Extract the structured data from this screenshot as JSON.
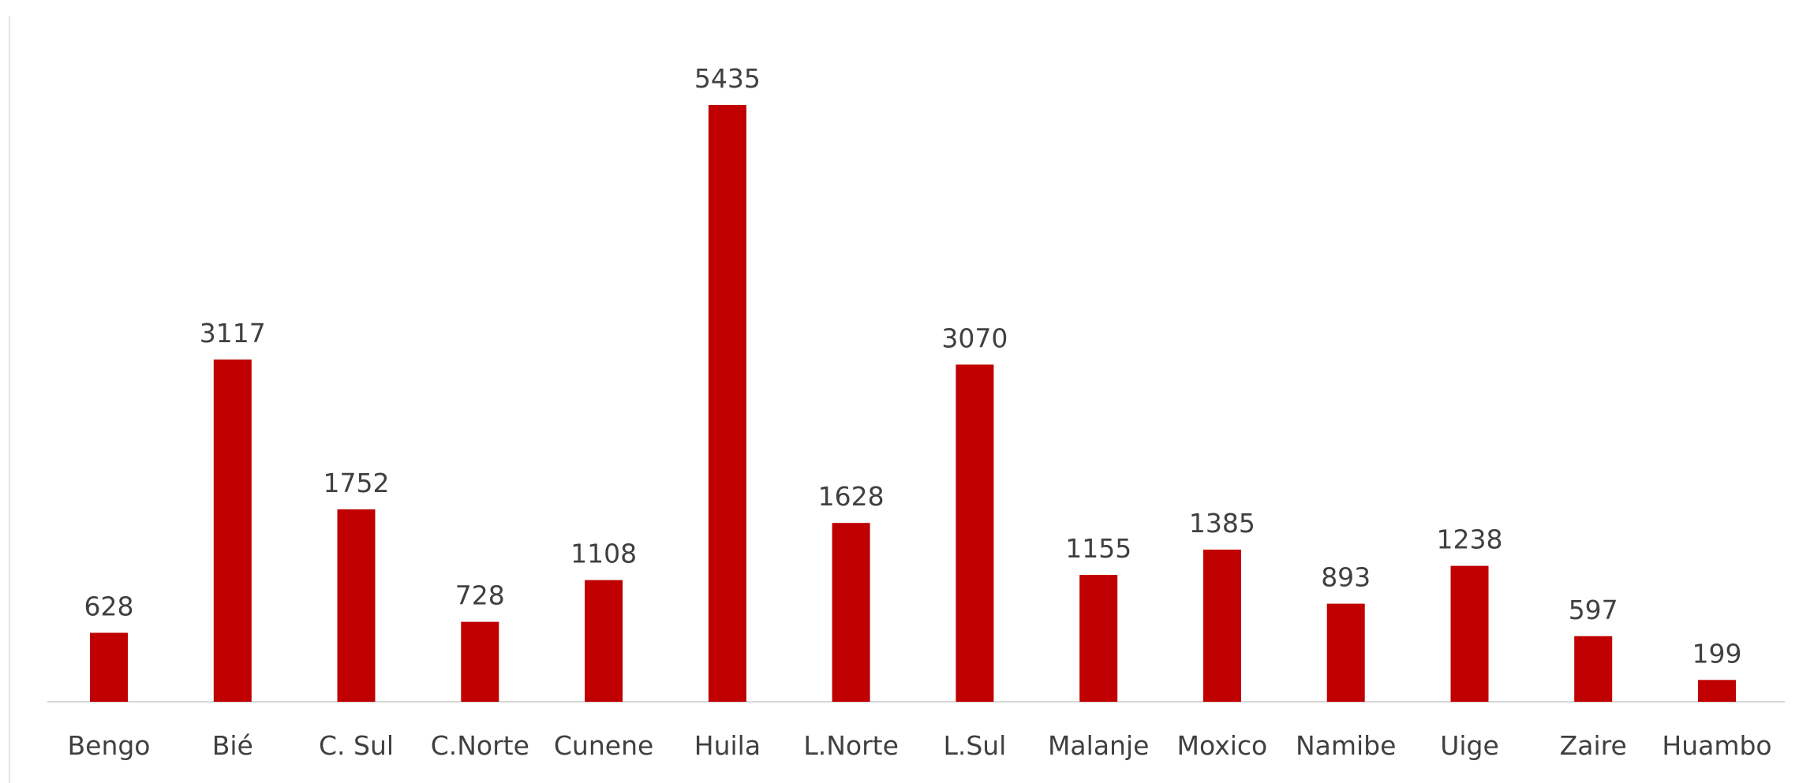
{
  "chart_data": {
    "type": "bar",
    "categories": [
      "Bengo",
      "Bié",
      "C. Sul",
      "C.Norte",
      "Cunene",
      "Huila",
      "L.Norte",
      "L.Sul",
      "Malanje",
      "Moxico",
      "Namibe",
      "Uige",
      "Zaire",
      "Huambo"
    ],
    "values": [
      628,
      3117,
      1752,
      728,
      1108,
      5435,
      1628,
      3070,
      1155,
      1385,
      893,
      1238,
      597,
      199
    ],
    "value_labels": [
      "628",
      "3117",
      "1752",
      "728",
      "1108",
      "5435",
      "1628",
      "3070",
      "1155",
      "1385",
      "893",
      "1238",
      "597",
      "199"
    ],
    "title": "",
    "xlabel": "",
    "ylabel": "",
    "ylim": [
      0,
      5435
    ],
    "grid": false,
    "legend": "none",
    "bar_color": "#C00000",
    "text_color": "#404040",
    "axis_color": "#D9D9D9"
  }
}
